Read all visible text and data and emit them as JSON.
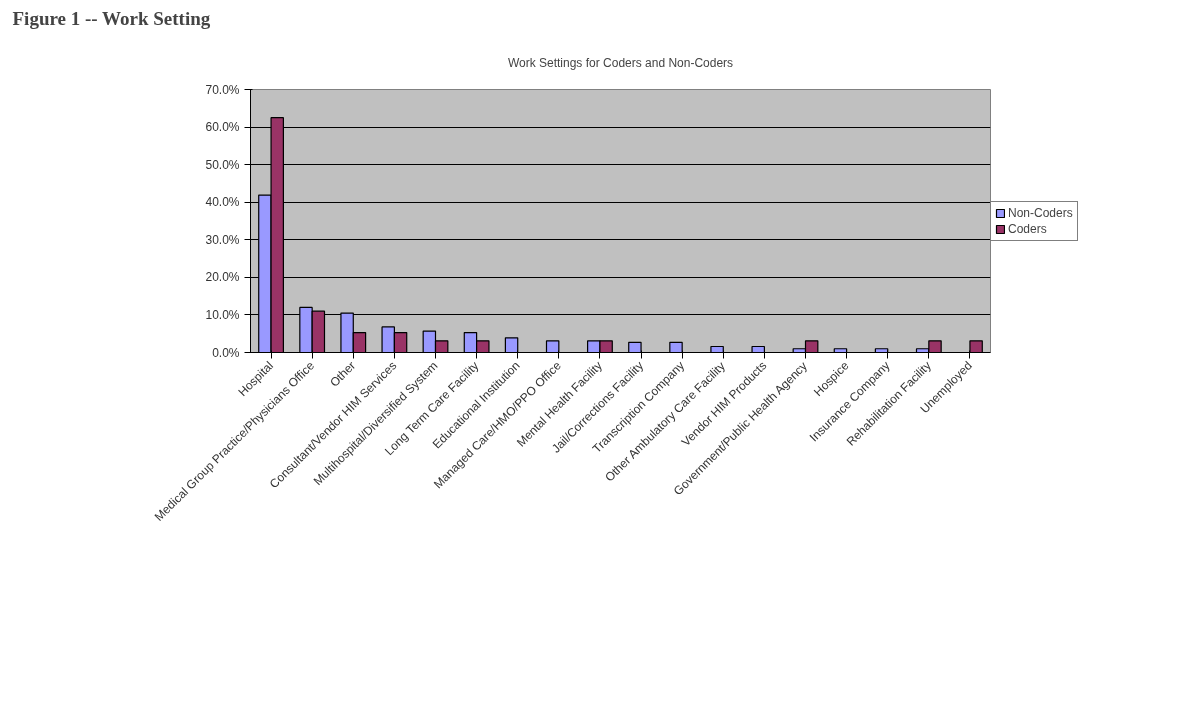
{
  "chart_data": {
    "type": "bar",
    "title": "Figure 1 -- Work Setting",
    "subtitle": "Work Settings for Coders and Non-Coders",
    "categories": [
      "Hospital",
      "Medical Group Practice/Physicians Office",
      "Other",
      "Consultant/Vendor HIM Services",
      "Multihospital/Diversified System",
      "Long Term Care Facility",
      "Educational Institution",
      "Managed Care/HMO/PPO Office",
      "Mental Health Facility",
      "Jail/Corrections Facility",
      "Transcription Company",
      "Other Ambulatory Care Facility",
      "Vendor HIM Products",
      "Government/Public Health Agency",
      "Hospice",
      "Insurance Company",
      "Rehabilitation Facility",
      "Unemployed"
    ],
    "series": [
      {
        "name": "Non-Coders",
        "color": "#9999ff",
        "values": [
          41.9,
          12.0,
          10.5,
          6.8,
          5.7,
          5.3,
          3.9,
          3.1,
          3.1,
          2.7,
          2.7,
          1.6,
          1.6,
          1.0,
          1.0,
          1.0,
          1.0,
          null
        ]
      },
      {
        "name": "Coders",
        "color": "#993366",
        "values": [
          62.5,
          11.0,
          5.3,
          5.3,
          3.1,
          3.1,
          null,
          null,
          3.1,
          null,
          null,
          null,
          null,
          3.1,
          null,
          null,
          3.1,
          3.1
        ]
      }
    ],
    "ylim": [
      0,
      70
    ],
    "yticks": [
      {
        "value": 0,
        "label": "0.0%"
      },
      {
        "value": 10,
        "label": "10.0%"
      },
      {
        "value": 20,
        "label": "20.0%"
      },
      {
        "value": 30,
        "label": "30.0%"
      },
      {
        "value": 40,
        "label": "40.0%"
      },
      {
        "value": 50,
        "label": "50.0%"
      },
      {
        "value": 60,
        "label": "60.0%"
      },
      {
        "value": 70,
        "label": "70.0%"
      }
    ],
    "grid": "y",
    "legend": "right"
  }
}
